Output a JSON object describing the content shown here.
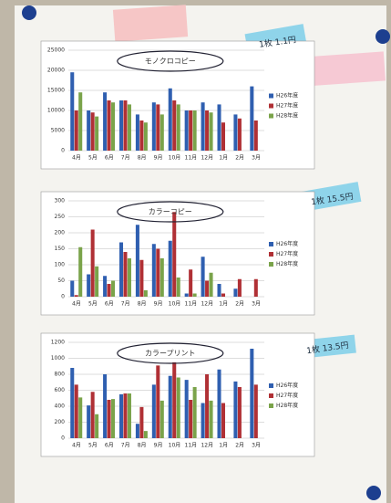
{
  "chart_data": [
    {
      "type": "bar",
      "title": "モノクロコピー",
      "categories": [
        "4月",
        "5月",
        "6月",
        "7月",
        "8月",
        "9月",
        "10月",
        "11月",
        "12月",
        "1月",
        "2月",
        "3月"
      ],
      "series": [
        {
          "name": "H26年度",
          "color": "#2f5fb0",
          "values": [
            19500,
            10000,
            14500,
            12500,
            9000,
            12000,
            15500,
            10000,
            12000,
            11500,
            9000,
            16000
          ]
        },
        {
          "name": "H27年度",
          "color": "#b03035",
          "values": [
            10000,
            9500,
            12500,
            12500,
            7500,
            11500,
            12500,
            10000,
            10000,
            7000,
            8000,
            7500
          ]
        },
        {
          "name": "H28年度",
          "color": "#7aa34a",
          "values": [
            14500,
            8500,
            12000,
            11500,
            7000,
            9000,
            11500,
            10000,
            9500,
            null,
            null,
            null
          ]
        }
      ],
      "ylim": [
        0,
        25000
      ],
      "yticks": [
        0,
        5000,
        10000,
        15000,
        20000,
        25000
      ],
      "grid": true
    },
    {
      "type": "bar",
      "title": "カラーコピー",
      "categories": [
        "4月",
        "5月",
        "6月",
        "7月",
        "8月",
        "9月",
        "10月",
        "11月",
        "12月",
        "1月",
        "2月",
        "3月"
      ],
      "series": [
        {
          "name": "H26年度",
          "color": "#2f5fb0",
          "values": [
            50,
            70,
            65,
            170,
            225,
            165,
            175,
            10,
            125,
            40,
            25,
            null
          ]
        },
        {
          "name": "H27年度",
          "color": "#b03035",
          "values": [
            5,
            210,
            40,
            140,
            115,
            150,
            265,
            85,
            50,
            10,
            55,
            55
          ]
        },
        {
          "name": "H28年度",
          "color": "#7aa34a",
          "values": [
            155,
            95,
            50,
            120,
            20,
            120,
            60,
            10,
            75,
            null,
            null,
            null
          ]
        }
      ],
      "ylim": [
        0,
        300
      ],
      "yticks": [
        0,
        50,
        100,
        150,
        200,
        250,
        300
      ],
      "grid": true
    },
    {
      "type": "bar",
      "title": "カラープリント",
      "categories": [
        "4月",
        "5月",
        "6月",
        "7月",
        "8月",
        "9月",
        "10月",
        "11月",
        "12月",
        "1月",
        "2月",
        "3月"
      ],
      "series": [
        {
          "name": "H26年度",
          "color": "#2f5fb0",
          "values": [
            880,
            410,
            800,
            550,
            180,
            670,
            780,
            730,
            440,
            860,
            710,
            1120
          ]
        },
        {
          "name": "H27年度",
          "color": "#b03035",
          "values": [
            670,
            580,
            480,
            560,
            390,
            910,
            950,
            480,
            800,
            440,
            640,
            670
          ]
        },
        {
          "name": "H28年度",
          "color": "#7aa34a",
          "values": [
            510,
            300,
            490,
            560,
            90,
            470,
            760,
            640,
            470,
            null,
            null,
            null
          ]
        }
      ],
      "ylim": [
        0,
        1200
      ],
      "yticks": [
        0,
        200,
        400,
        600,
        800,
        1000,
        1200
      ],
      "grid": true
    }
  ],
  "notes": [
    "1枚 1.1円",
    "1枚 15.5円",
    "1枚 13.5円"
  ]
}
